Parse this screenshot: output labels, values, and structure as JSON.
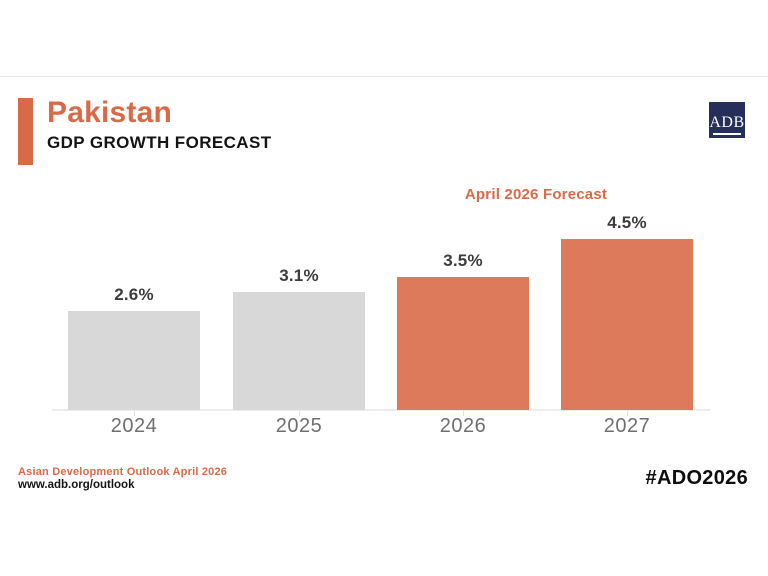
{
  "header": {
    "country": "Pakistan",
    "subtitle": "GDP GROWTH FORECAST",
    "logo_text": "ADB",
    "accent_color": "#D96A47",
    "logo_bg_color": "#252F5A"
  },
  "chart_data": {
    "type": "bar",
    "title": "Pakistan GDP Growth Forecast",
    "annotation": "April 2026 Forecast",
    "categories": [
      "2024",
      "2025",
      "2026",
      "2027"
    ],
    "values": [
      2.6,
      3.1,
      3.5,
      4.5
    ],
    "value_labels": [
      "2.6%",
      "3.1%",
      "3.5%",
      "4.5%"
    ],
    "bar_colors": [
      "#D8D8D8",
      "#D8D8D8",
      "#DC7A5B",
      "#DC7A5B"
    ],
    "actual_bar_color": "#D8D8D8",
    "forecast_bar_color": "#DC7A5B",
    "forecast_categories": [
      "2026",
      "2027"
    ],
    "ylim": [
      0,
      4.7
    ],
    "xlabel": "",
    "ylabel": "",
    "grid": false,
    "legend": false
  },
  "footer": {
    "source": "Asian Development Outlook April 2026",
    "url": "www.adb.org/outlook",
    "hashtag": "#ADO2026"
  }
}
